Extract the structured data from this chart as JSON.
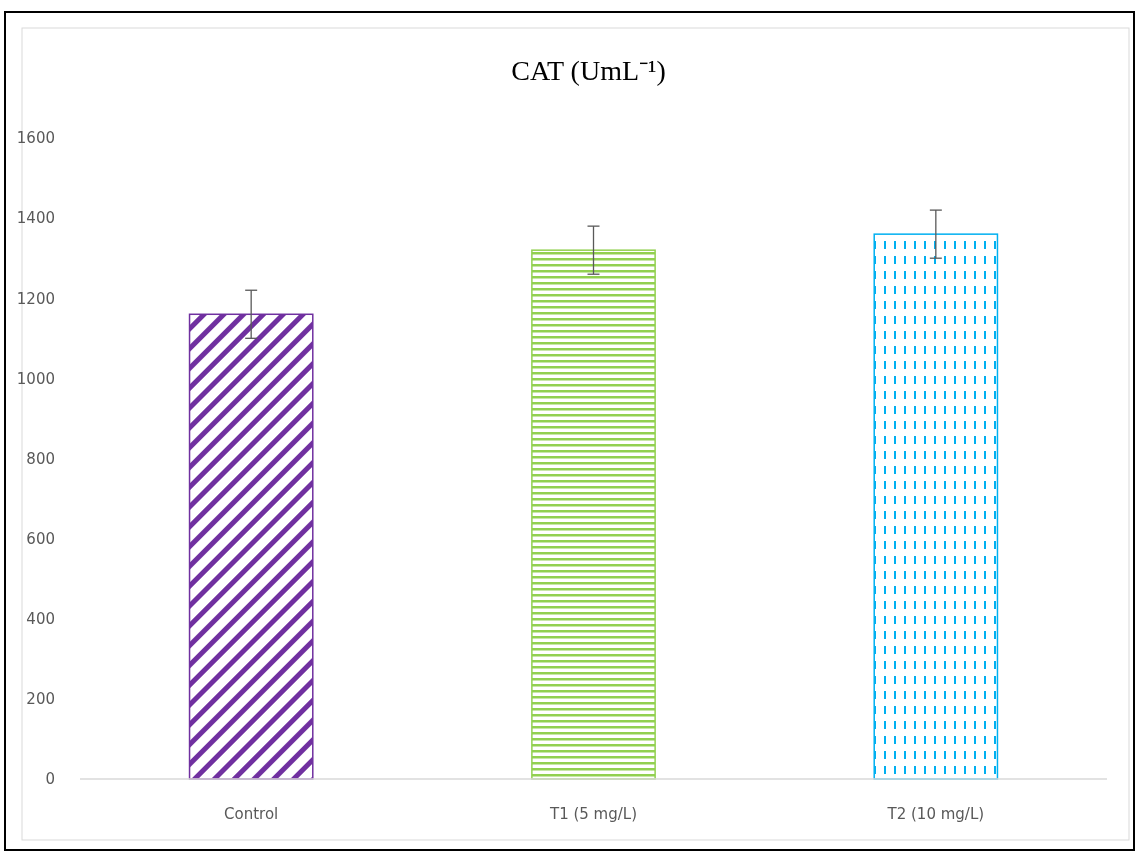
{
  "chart_data": {
    "type": "bar",
    "title": "CAT (UmL⁻¹)",
    "categories": [
      "Control",
      "T1 (5 mg/L)",
      "T2 (10 mg/L)"
    ],
    "values": [
      1160,
      1320,
      1360
    ],
    "errors": [
      60,
      60,
      60
    ],
    "colors": [
      "#7030a0",
      "#92d050",
      "#00b0f0"
    ],
    "ylim": [
      0,
      1600
    ],
    "yticks": [
      0,
      200,
      400,
      600,
      800,
      1000,
      1200,
      1400,
      1600
    ],
    "grid": false
  }
}
